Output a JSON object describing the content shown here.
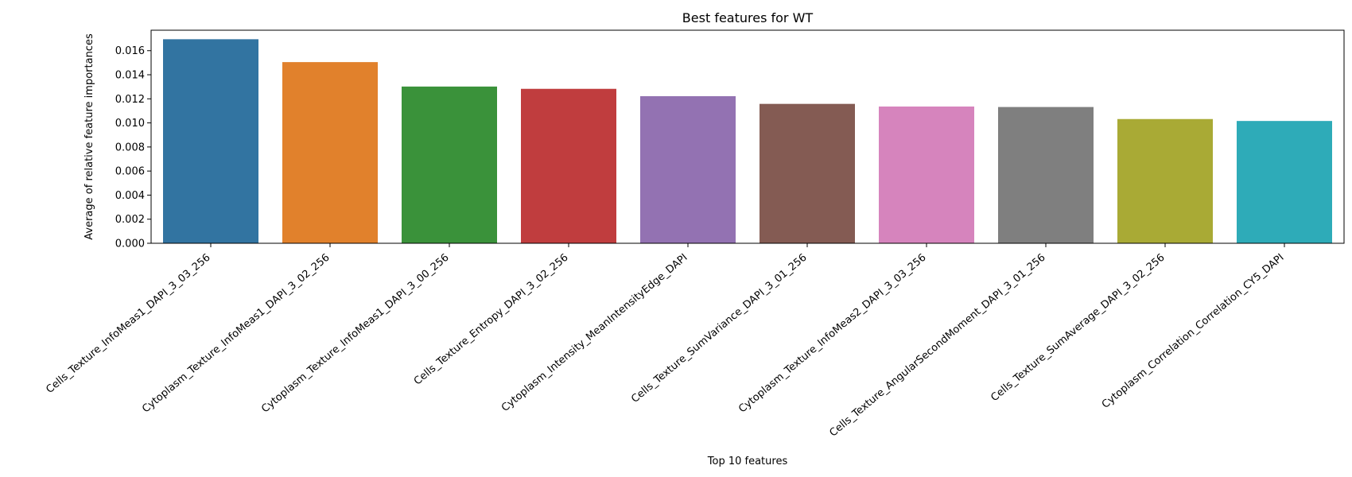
{
  "chart_data": {
    "type": "bar",
    "title": "Best features for WT",
    "xlabel": "Top 10 features",
    "ylabel": "Average of relative feature importances",
    "ylim": [
      0,
      0.0177
    ],
    "yticks": [
      "0.000",
      "0.002",
      "0.004",
      "0.006",
      "0.008",
      "0.010",
      "0.012",
      "0.014",
      "0.016"
    ],
    "grid": false,
    "categories": [
      "Cells_Texture_InfoMeas1_DAPI_3_03_256",
      "Cytoplasm_Texture_InfoMeas1_DAPI_3_02_256",
      "Cytoplasm_Texture_InfoMeas1_DAPI_3_00_256",
      "Cells_Texture_Entropy_DAPI_3_02_256",
      "Cytoplasm_Intensity_MeanIntensityEdge_DAPI",
      "Cells_Texture_SumVariance_DAPI_3_01_256",
      "Cytoplasm_Texture_InfoMeas2_DAPI_3_03_256",
      "Cells_Texture_AngularSecondMoment_DAPI_3_01_256",
      "Cells_Texture_SumAverage_DAPI_3_02_256",
      "Cytoplasm_Correlation_Correlation_CY5_DAPI"
    ],
    "values": [
      0.01695,
      0.01505,
      0.01302,
      0.01283,
      0.01222,
      0.01158,
      0.01136,
      0.01132,
      0.01032,
      0.01016
    ],
    "colors": [
      "#3274a1",
      "#e1812c",
      "#3a923a",
      "#c03d3e",
      "#9372b2",
      "#845b53",
      "#d684bd",
      "#7f7f7f",
      "#a9aa35",
      "#2eabb8"
    ]
  }
}
